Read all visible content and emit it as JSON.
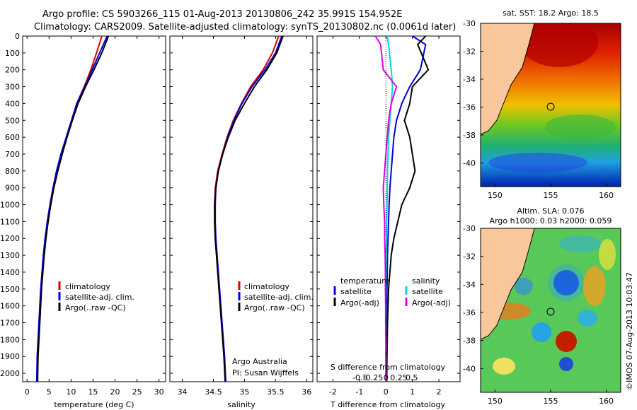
{
  "title_line1": "Argo profile: CS 5903266_115 01-Aug-2013 20130806_242 35.991S 154.952E",
  "title_line2": "Climatology: CARS2009. Satellite-adjusted climatology: synTS_20130802.nc (0.0061d later)",
  "depth_ticks": [
    "0",
    "100",
    "200",
    "300",
    "400",
    "500",
    "600",
    "700",
    "800",
    "900",
    "1000",
    "1100",
    "1200",
    "1300",
    "1400",
    "1500",
    "1600",
    "1700",
    "1800",
    "1900",
    "2000"
  ],
  "temp_panel": {
    "xlabel": "temperature (deg C)",
    "xticks": [
      "0",
      "5",
      "10",
      "15",
      "20",
      "25",
      "30"
    ],
    "legend": [
      "climatology",
      "satellite-adj. clim.",
      "Argo(..raw -QC)"
    ]
  },
  "sal_panel": {
    "xlabel": "salinity",
    "xticks": [
      "34",
      "34.5",
      "35",
      "35.5",
      "36"
    ],
    "legend": [
      "climatology",
      "satellite-adj. clim.",
      "Argo(..raw -QC)"
    ],
    "credit1": "Argo Australia",
    "credit2": "PI: Susan Wijffels"
  },
  "diff_panel": {
    "xlabel": "T difference from climatology",
    "xticks": [
      "-2",
      "-1",
      "0",
      "1",
      "2"
    ],
    "top_label": "S difference from climatology",
    "top_ticks": [
      "-0.5",
      "-0.25",
      "0",
      "0.25",
      "0.5"
    ],
    "legend_temp_head": "temperature",
    "legend_sal_head": "salinity",
    "legend_temp": [
      "satellite",
      "Argo(-adj)"
    ],
    "legend_sal": [
      "satellite",
      "Argo(-adj)"
    ]
  },
  "map_sst": {
    "title": "sat. SST: 18.2 Argo: 18.5",
    "yticks": [
      "-30",
      "-32",
      "-34",
      "-36",
      "-38",
      "-40"
    ],
    "xticks": [
      "150",
      "155",
      "160"
    ]
  },
  "map_sla": {
    "title1": "Altim. SLA: 0.076",
    "title2": "Argo h1000: 0.03 h2000: 0.059",
    "yticks": [
      "-30",
      "-32",
      "-34",
      "-36",
      "-38",
      "-40"
    ],
    "xticks": [
      "150",
      "155",
      "160"
    ]
  },
  "stamp": "©IMOS 07-Aug-2013 10:03:47",
  "colors": {
    "climatology": "#e00000",
    "satellite": "#0000e0",
    "argo": "#000000",
    "sat_s": "#00d8d8",
    "argo_s": "#e000e0",
    "land": "#f8c89c"
  },
  "chart_data": [
    {
      "type": "line",
      "xlabel": "temperature (deg C)",
      "ylabel": "",
      "xlim": [
        -1,
        31.5
      ],
      "ylim": [
        2050,
        0
      ],
      "series": [
        {
          "name": "climatology",
          "x": [
            17.0,
            15.8,
            14.5,
            13.0,
            11.3,
            10.2,
            9.0,
            7.8,
            6.8,
            6.0,
            5.3,
            4.7,
            4.2,
            3.8,
            3.5,
            3.2,
            3.0,
            2.8,
            2.6,
            2.4,
            2.3
          ],
          "y": [
            0,
            100,
            200,
            300,
            400,
            500,
            600,
            700,
            800,
            900,
            1000,
            1100,
            1200,
            1300,
            1400,
            1500,
            1600,
            1700,
            1800,
            1900,
            2050
          ]
        },
        {
          "name": "satellite-adj. clim.",
          "x": [
            18.2,
            16.5,
            14.8,
            13.1,
            11.3,
            10.1,
            8.9,
            7.7,
            6.7,
            5.9,
            5.2,
            4.6,
            4.1,
            3.7,
            3.4,
            3.1,
            2.9,
            2.7,
            2.5,
            2.3,
            2.2
          ],
          "y": [
            0,
            100,
            200,
            300,
            400,
            500,
            600,
            700,
            800,
            900,
            1000,
            1100,
            1200,
            1300,
            1400,
            1500,
            1600,
            1700,
            1800,
            1900,
            2050
          ]
        },
        {
          "name": "Argo(..raw -QC)",
          "x": [
            18.5,
            17.0,
            15.2,
            13.3,
            11.6,
            10.3,
            9.1,
            8.0,
            7.0,
            6.1,
            5.4,
            4.8,
            4.3,
            3.9,
            3.6,
            3.3,
            3.1,
            2.9,
            2.7,
            2.5,
            2.4
          ],
          "y": [
            0,
            100,
            200,
            300,
            400,
            500,
            600,
            700,
            800,
            900,
            1000,
            1100,
            1200,
            1300,
            1400,
            1500,
            1600,
            1700,
            1800,
            1900,
            2050
          ]
        }
      ]
    },
    {
      "type": "line",
      "xlabel": "salinity",
      "ylabel": "",
      "xlim": [
        33.8,
        36.1
      ],
      "ylim": [
        2050,
        0
      ],
      "series": [
        {
          "name": "climatology",
          "x": [
            35.55,
            35.45,
            35.3,
            35.1,
            34.95,
            34.82,
            34.72,
            34.64,
            34.57,
            34.53,
            34.52,
            34.52,
            34.53,
            34.55,
            34.57,
            34.59,
            34.61,
            34.63,
            34.65,
            34.67,
            34.69
          ],
          "y": [
            0,
            100,
            200,
            300,
            400,
            500,
            600,
            700,
            800,
            900,
            1000,
            1100,
            1200,
            1300,
            1400,
            1500,
            1600,
            1700,
            1800,
            1900,
            2050
          ]
        },
        {
          "name": "satellite-adj. clim.",
          "x": [
            35.6,
            35.5,
            35.33,
            35.12,
            34.96,
            34.83,
            34.73,
            34.65,
            34.58,
            34.54,
            34.53,
            34.53,
            34.54,
            34.56,
            34.58,
            34.6,
            34.62,
            34.64,
            34.66,
            34.68,
            34.7
          ],
          "y": [
            0,
            100,
            200,
            300,
            400,
            500,
            600,
            700,
            800,
            900,
            1000,
            1100,
            1200,
            1300,
            1400,
            1500,
            1600,
            1700,
            1800,
            1900,
            2050
          ]
        },
        {
          "name": "Argo(..raw -QC)",
          "x": [
            35.62,
            35.52,
            35.36,
            35.16,
            35.0,
            34.85,
            34.74,
            34.65,
            34.58,
            34.54,
            34.52,
            34.52,
            34.53,
            34.55,
            34.57,
            34.59,
            34.61,
            34.63,
            34.65,
            34.67,
            34.69
          ],
          "y": [
            0,
            100,
            200,
            300,
            400,
            500,
            600,
            700,
            800,
            900,
            1000,
            1100,
            1200,
            1300,
            1400,
            1500,
            1600,
            1700,
            1800,
            1900,
            2050
          ]
        }
      ]
    },
    {
      "type": "line",
      "xlabel": "T difference from climatology",
      "ylabel": "",
      "xlim": [
        -2.6,
        2.8
      ],
      "ylim": [
        2050,
        0
      ],
      "series": [
        {
          "name": "temperature satellite",
          "x": [
            1.0,
            1.5,
            1.3,
            0.9,
            0.6,
            0.4,
            0.3,
            0.25,
            0.2,
            0.15,
            0.12,
            0.1,
            0.08,
            0.06,
            0.05,
            0.04,
            0.03,
            0.02,
            0.02,
            0.01,
            0.01
          ],
          "y": [
            0,
            50,
            200,
            300,
            400,
            500,
            600,
            700,
            800,
            900,
            1000,
            1100,
            1200,
            1300,
            1400,
            1500,
            1600,
            1700,
            1800,
            1900,
            2050
          ]
        },
        {
          "name": "temperature Argo(-adj)",
          "x": [
            1.5,
            1.2,
            1.6,
            1.0,
            0.9,
            0.7,
            0.9,
            1.0,
            1.1,
            0.9,
            0.6,
            0.45,
            0.3,
            0.2,
            0.15,
            0.1,
            0.08,
            0.06,
            0.05,
            0.04,
            0.03
          ],
          "y": [
            0,
            50,
            200,
            300,
            400,
            500,
            600,
            700,
            800,
            900,
            1000,
            1100,
            1200,
            1300,
            1400,
            1500,
            1600,
            1700,
            1800,
            1900,
            2050
          ]
        },
        {
          "name": "salinity satellite",
          "x": [
            0.05,
            0.1,
            0.2,
            0.25,
            0.2,
            0.15,
            0.1,
            0.08,
            0.06,
            0.05,
            0.04,
            0.03,
            0.02,
            0.02,
            0.01,
            0.0,
            0.0,
            0.0,
            0.0,
            0.0,
            0.0
          ],
          "y": [
            0,
            50,
            200,
            300,
            400,
            500,
            600,
            700,
            800,
            900,
            1000,
            1100,
            1200,
            1300,
            1400,
            1500,
            1600,
            1700,
            1800,
            1900,
            2050
          ]
        },
        {
          "name": "salinity Argo(-adj)",
          "x": [
            -0.4,
            -0.2,
            -0.1,
            0.4,
            0.2,
            0.1,
            0.05,
            0.0,
            -0.05,
            -0.1,
            -0.08,
            -0.05,
            -0.05,
            -0.03,
            -0.02,
            -0.02,
            -0.01,
            -0.01,
            0.0,
            0.0,
            0.0
          ],
          "y": [
            0,
            50,
            200,
            300,
            400,
            500,
            600,
            700,
            800,
            900,
            1000,
            1100,
            1200,
            1300,
            1400,
            1500,
            1600,
            1700,
            1800,
            1900,
            2050
          ]
        }
      ]
    }
  ]
}
